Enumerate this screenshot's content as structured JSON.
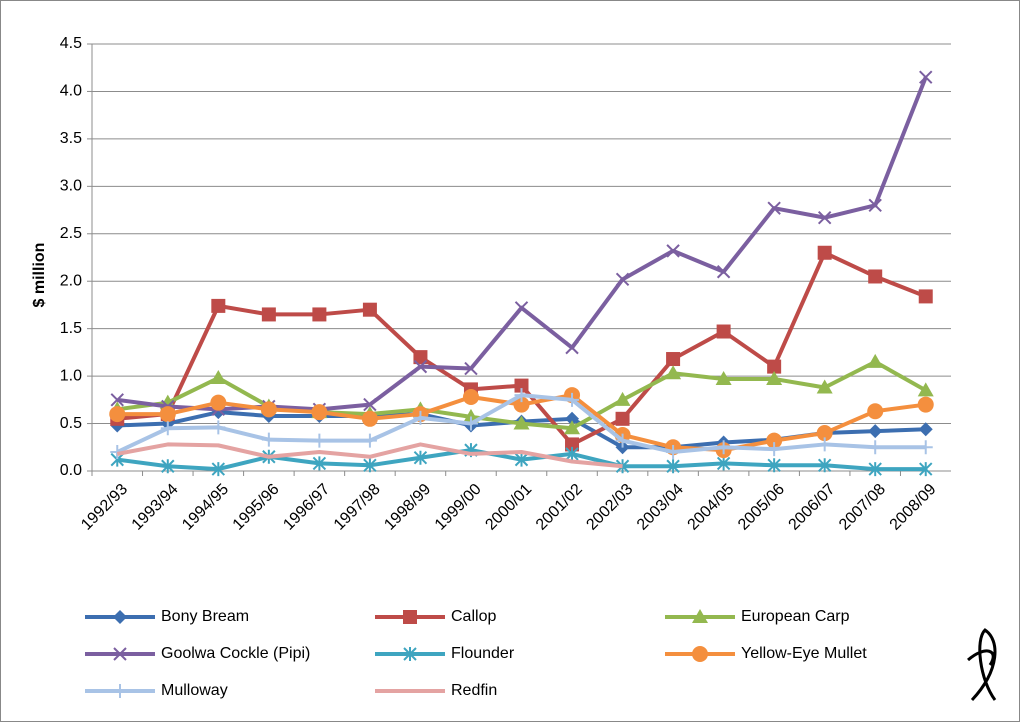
{
  "chart_data": {
    "type": "line",
    "y_label": "$ million",
    "categories": [
      "1992/93",
      "1993/94",
      "1994/95",
      "1995/96",
      "1996/97",
      "1997/98",
      "1998/99",
      "1999/00",
      "2000/01",
      "2001/02",
      "2002/03",
      "2003/04",
      "2004/05",
      "2005/06",
      "2006/07",
      "2007/08",
      "2008/09"
    ],
    "ylim": [
      0,
      4.5
    ],
    "yticks": [
      {
        "value": 0,
        "label": "0.0"
      },
      0.5,
      {
        "value": 1,
        "label": "1.0"
      },
      1.5,
      {
        "value": 2,
        "label": "2.0"
      },
      2.5,
      {
        "value": 3,
        "label": "3.0"
      },
      3.5,
      {
        "value": 4,
        "label": "4.0"
      },
      4.5
    ],
    "grid": true,
    "legend": "bottom",
    "series": [
      {
        "name": "Bony Bream",
        "color": "#3c6eb0",
        "marker": "diamond",
        "values": [
          0.48,
          0.5,
          0.62,
          0.58,
          0.58,
          0.58,
          0.6,
          0.48,
          0.52,
          0.55,
          0.25,
          0.25,
          0.3,
          0.33,
          0.4,
          0.42,
          0.44
        ]
      },
      {
        "name": "Callop",
        "color": "#be4b48",
        "marker": "square",
        "values": [
          0.55,
          0.6,
          1.74,
          1.65,
          1.65,
          1.7,
          1.2,
          0.86,
          0.9,
          0.28,
          0.55,
          1.18,
          1.47,
          1.1,
          2.3,
          2.05,
          1.84
        ]
      },
      {
        "name": "European Carp",
        "color": "#93b84f",
        "marker": "triangle",
        "values": [
          0.65,
          0.72,
          0.98,
          0.68,
          0.62,
          0.6,
          0.65,
          0.57,
          0.5,
          0.45,
          0.75,
          1.03,
          0.97,
          0.97,
          0.88,
          1.15,
          0.85
        ]
      },
      {
        "name": "Goolwa Cockle (Pipi)",
        "color": "#7b5fa0",
        "marker": "x",
        "values": [
          0.75,
          0.68,
          0.65,
          0.68,
          0.65,
          0.7,
          1.1,
          1.08,
          1.72,
          1.3,
          2.02,
          2.32,
          2.1,
          2.77,
          2.67,
          2.8,
          4.15
        ]
      },
      {
        "name": "Flounder",
        "color": "#3ea5c0",
        "marker": "asterisk",
        "values": [
          0.12,
          0.05,
          0.02,
          0.15,
          0.08,
          0.06,
          0.14,
          0.22,
          0.12,
          0.18,
          0.05,
          0.05,
          0.08,
          0.06,
          0.06,
          0.02,
          0.02
        ]
      },
      {
        "name": "Yellow-Eye Mullet",
        "color": "#f48f3e",
        "marker": "circle",
        "values": [
          0.6,
          0.6,
          0.72,
          0.65,
          0.62,
          0.55,
          0.6,
          0.78,
          0.7,
          0.8,
          0.38,
          0.25,
          0.22,
          0.32,
          0.4,
          0.63,
          0.7
        ]
      },
      {
        "name": "Mulloway",
        "color": "#a8c3e6",
        "marker": "plus",
        "values": [
          0.2,
          0.45,
          0.46,
          0.33,
          0.32,
          0.32,
          0.56,
          0.5,
          0.8,
          0.75,
          0.32,
          0.2,
          0.25,
          0.23,
          0.28,
          0.25,
          0.25
        ]
      },
      {
        "name": "Redfin",
        "color": "#e4a3a2",
        "marker": "none",
        "values": [
          0.18,
          0.28,
          0.27,
          0.15,
          0.2,
          0.15,
          0.28,
          0.18,
          0.2,
          0.1,
          0.05,
          null,
          null,
          null,
          null,
          null,
          null
        ]
      }
    ]
  }
}
